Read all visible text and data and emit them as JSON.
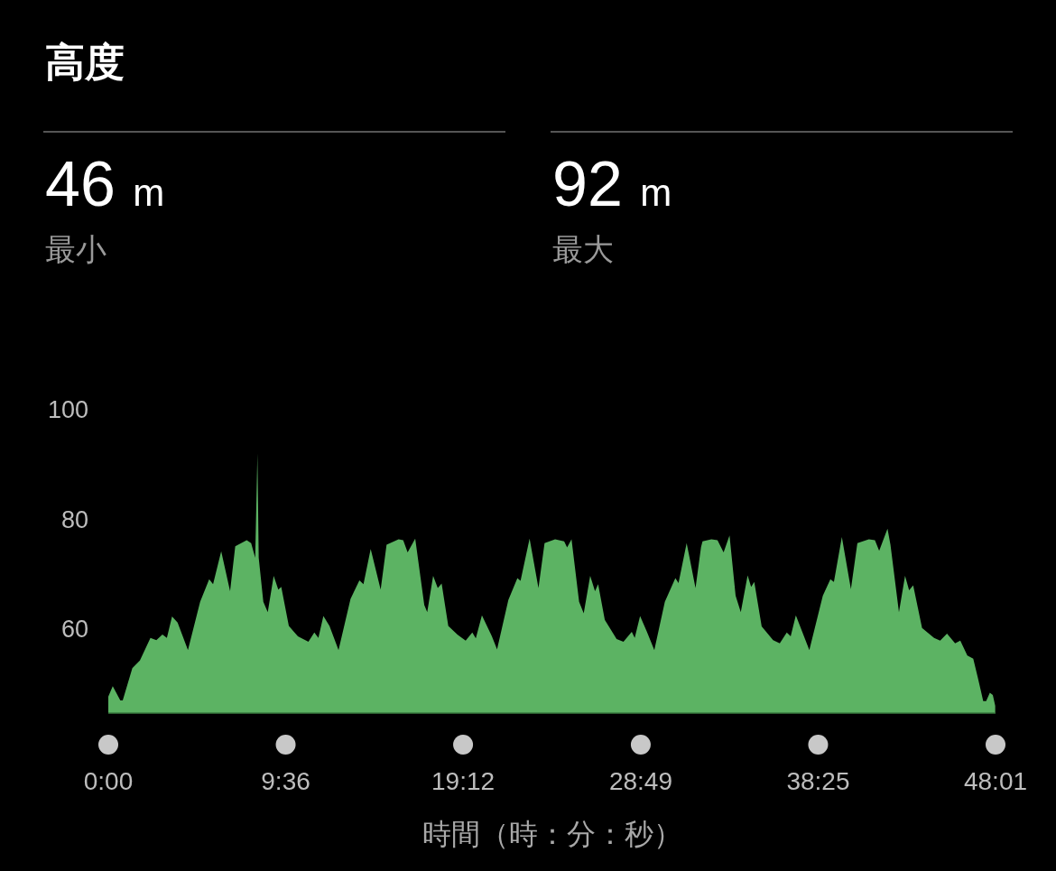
{
  "chart_data": {
    "type": "area",
    "title": "高度",
    "xlabel": "時間（時：分：秒）",
    "annotations": [
      "46 m",
      "最小",
      "92 m",
      "最大"
    ],
    "x": [
      0,
      0.24,
      0.65,
      0.78,
      1.3,
      1.71,
      2.28,
      2.6,
      2.93,
      3.17,
      3.45,
      3.75,
      4.31,
      4.97,
      5.46,
      5.67,
      6.11,
      6.59,
      6.87,
      7.49,
      7.73,
      7.95,
      8.07,
      8.14,
      8.39,
      8.63,
      8.95,
      9.2,
      9.36,
      9.77,
      10.26,
      10.83,
      11.15,
      11.37,
      11.64,
      11.97,
      12.46,
      13.11,
      13.59,
      13.81,
      14.2,
      14.74,
      15.06,
      15.71,
      15.96,
      16.2,
      16.61,
      17.1,
      17.26,
      17.58,
      17.83,
      18.04,
      18.4,
      18.89,
      19.34,
      19.7,
      19.89,
      20.22,
      20.76,
      21.04,
      21.65,
      22.14,
      22.31,
      22.8,
      23.28,
      23.61,
      24.18,
      24.67,
      24.83,
      25.07,
      25.48,
      25.73,
      26.08,
      26.34,
      26.51,
      26.87,
      27.51,
      27.88,
      28.33,
      28.49,
      28.78,
      29.15,
      29.55,
      30.12,
      30.69,
      30.86,
      31.3,
      31.78,
      32.08,
      32.16,
      32.64,
      32.97,
      33.3,
      33.62,
      33.95,
      34.23,
      34.6,
      34.79,
      34.96,
      35.36,
      35.98,
      36.34,
      36.72,
      36.93,
      37.21,
      37.94,
      38.67,
      39.08,
      39.27,
      39.7,
      40.19,
      40.54,
      41.16,
      41.49,
      41.72,
      42.17,
      42.33,
      42.79,
      43.12,
      43.34,
      43.56,
      44.04,
      44.69,
      45.02,
      45.39,
      45.83,
      46.11,
      46.49,
      46.81,
      47.05,
      47.35,
      47.51,
      47.71,
      47.87,
      48.0
    ],
    "series": [
      {
        "color": "#5cb363",
        "values": [
          47.7,
          49.6,
          47.0,
          47.0,
          52.9,
          54.3,
          58.4,
          58.0,
          59.0,
          58.4,
          62.3,
          61.2,
          56.2,
          65.0,
          69.1,
          68.2,
          74.2,
          66.9,
          75.1,
          76.2,
          75.7,
          73.0,
          92,
          73.0,
          65.0,
          63.1,
          69.7,
          67.2,
          67.7,
          60.6,
          58.7,
          57.7,
          59.4,
          58.4,
          62.4,
          60.6,
          56.2,
          65.5,
          68.9,
          68.2,
          74.6,
          67.2,
          75.4,
          76.4,
          76.2,
          74.0,
          76.5,
          64.4,
          63.1,
          69.7,
          67.5,
          68.3,
          60.6,
          59.0,
          57.9,
          59.4,
          58.3,
          62.5,
          58.7,
          56.3,
          65.3,
          69.3,
          68.8,
          76.5,
          67.5,
          75.7,
          76.4,
          76.0,
          74.9,
          76.4,
          65.0,
          62.9,
          69.7,
          66.9,
          68.2,
          61.7,
          58.2,
          57.7,
          59.5,
          58.4,
          62.4,
          59.5,
          56.2,
          65.0,
          69.3,
          68.4,
          75.7,
          67.5,
          75.0,
          76.0,
          76.4,
          76.2,
          74.0,
          77.1,
          66.1,
          63.1,
          69.8,
          67.7,
          68.6,
          60.5,
          58.0,
          57.4,
          59.4,
          58.7,
          62.5,
          56.2,
          66.1,
          69.1,
          68.6,
          76.8,
          67.3,
          75.7,
          76.4,
          76.2,
          74.3,
          78.3,
          75.4,
          63.1,
          69.7,
          67.1,
          68.0,
          60.2,
          58.4,
          57.9,
          59.2,
          57.4,
          57.9,
          55.2,
          54.6,
          51.3,
          46.9,
          46.9,
          48.4,
          48.0,
          46.0
        ]
      }
    ],
    "xlim": [
      0,
      48.0167
    ],
    "xticks": [
      {
        "value": 0,
        "label": "0:00"
      },
      {
        "value": 9.6,
        "label": "9:36"
      },
      {
        "value": 19.2,
        "label": "19:12"
      },
      {
        "value": 28.8167,
        "label": "28:49"
      },
      {
        "value": 38.4167,
        "label": "38:25"
      },
      {
        "value": 48.0167,
        "label": "48:01"
      }
    ],
    "ylim": [
      44.7,
      100
    ],
    "yticks": [
      60,
      80,
      100
    ],
    "grid": false
  }
}
